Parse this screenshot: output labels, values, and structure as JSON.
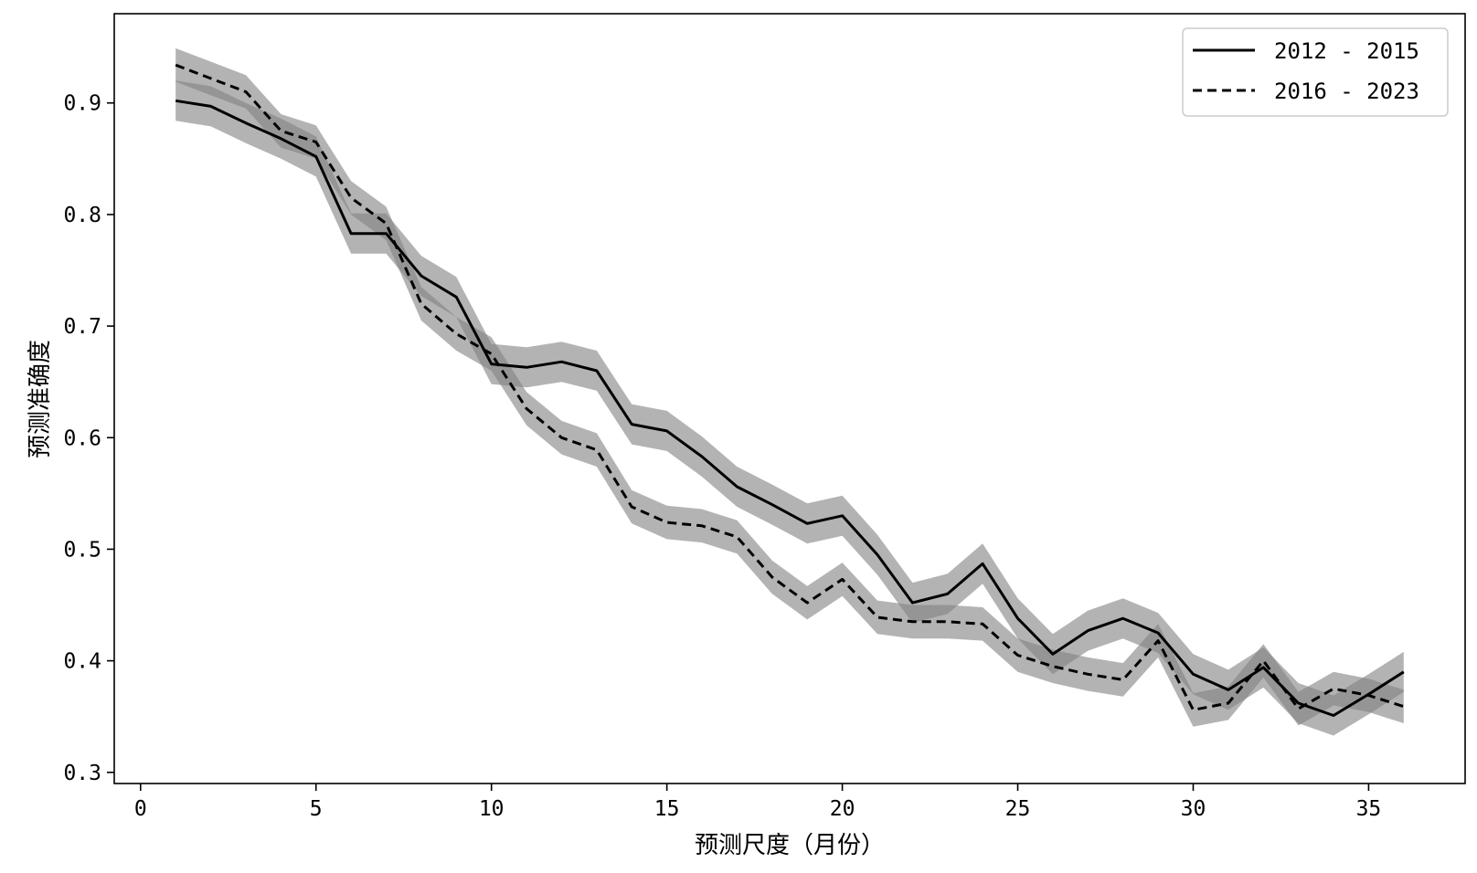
{
  "chart_data": {
    "type": "line",
    "xlabel": "预测尺度（月份）",
    "ylabel": "预测准确度",
    "xlim": [
      -0.75,
      37.75
    ],
    "ylim": [
      0.29,
      0.98
    ],
    "xticks": [
      0,
      5,
      10,
      15,
      20,
      25,
      30,
      35
    ],
    "xtick_labels": [
      "0",
      "5",
      "10",
      "15",
      "20",
      "25",
      "30",
      "35"
    ],
    "yticks": [
      0.3,
      0.4,
      0.5,
      0.6,
      0.7,
      0.8,
      0.9
    ],
    "ytick_labels": [
      "0.3",
      "0.4",
      "0.5",
      "0.6",
      "0.7",
      "0.8",
      "0.9"
    ],
    "grid": false,
    "legend_position": "top-right",
    "band_color": "#808080",
    "band_opacity": 0.6,
    "x": [
      1,
      2,
      3,
      4,
      5,
      6,
      7,
      8,
      9,
      10,
      11,
      12,
      13,
      14,
      15,
      16,
      17,
      18,
      19,
      20,
      21,
      22,
      23,
      24,
      25,
      26,
      27,
      28,
      29,
      30,
      31,
      32,
      33,
      34,
      35,
      36
    ],
    "series": [
      {
        "name": "2012 - 2015",
        "style": "solid",
        "color": "#000000",
        "values": [
          0.902,
          0.897,
          0.882,
          0.868,
          0.852,
          0.783,
          0.783,
          0.745,
          0.726,
          0.666,
          0.663,
          0.668,
          0.66,
          0.612,
          0.606,
          0.583,
          0.556,
          0.54,
          0.523,
          0.53,
          0.495,
          0.452,
          0.46,
          0.487,
          0.438,
          0.406,
          0.427,
          0.438,
          0.425,
          0.388,
          0.374,
          0.394,
          0.362,
          0.351,
          0.37,
          0.39
        ],
        "band": 0.018
      },
      {
        "name": "2016 - 2023",
        "style": "dashed",
        "color": "#000000",
        "values": [
          0.934,
          0.922,
          0.91,
          0.875,
          0.865,
          0.815,
          0.792,
          0.72,
          0.693,
          0.675,
          0.626,
          0.6,
          0.589,
          0.538,
          0.524,
          0.521,
          0.511,
          0.475,
          0.452,
          0.473,
          0.439,
          0.435,
          0.435,
          0.433,
          0.405,
          0.395,
          0.388,
          0.383,
          0.418,
          0.356,
          0.362,
          0.4,
          0.357,
          0.375,
          0.369,
          0.359
        ],
        "band": 0.015
      }
    ]
  }
}
